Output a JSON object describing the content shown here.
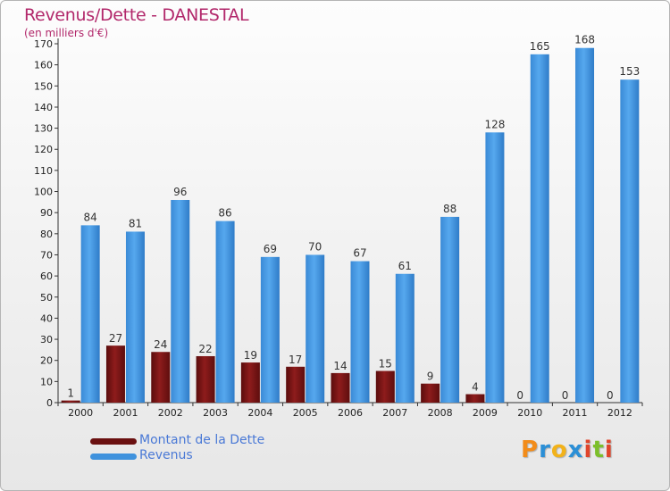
{
  "header": {
    "title": "Revenus/Dette - DANESTAL",
    "subtitle": "(en milliers d'€)"
  },
  "colors": {
    "debt": "#7a1414",
    "revenue": "#3f92dd",
    "title": "#b2286b"
  },
  "legend": {
    "items": [
      {
        "label": "Montant de la Dette",
        "color": "#7a1414"
      },
      {
        "label": "Revenus",
        "color": "#3f92dd"
      }
    ]
  },
  "logo": {
    "letters": [
      "P",
      "r",
      "o",
      "x",
      "i",
      "t",
      "i"
    ],
    "colors": [
      "#f28c1a",
      "#2b8fd6",
      "#f2b21a",
      "#2b8fd6",
      "#e0452b",
      "#7cbf2a",
      "#e0452b"
    ]
  },
  "chart_data": {
    "type": "bar",
    "categories": [
      "2000",
      "2001",
      "2002",
      "2003",
      "2004",
      "2005",
      "2006",
      "2007",
      "2008",
      "2009",
      "2010",
      "2011",
      "2012"
    ],
    "series": [
      {
        "name": "Montant de la Dette",
        "values": [
          1,
          27,
          24,
          22,
          19,
          17,
          14,
          15,
          9,
          4,
          0,
          0,
          0
        ]
      },
      {
        "name": "Revenus",
        "values": [
          84,
          81,
          96,
          86,
          69,
          70,
          67,
          61,
          88,
          128,
          165,
          168,
          153
        ]
      }
    ],
    "ylim": [
      0,
      170
    ],
    "yticks": [
      0,
      10,
      20,
      30,
      40,
      50,
      60,
      70,
      80,
      90,
      100,
      110,
      120,
      130,
      140,
      150,
      160,
      170
    ],
    "grid": false,
    "legend_position": "bottom-left"
  }
}
